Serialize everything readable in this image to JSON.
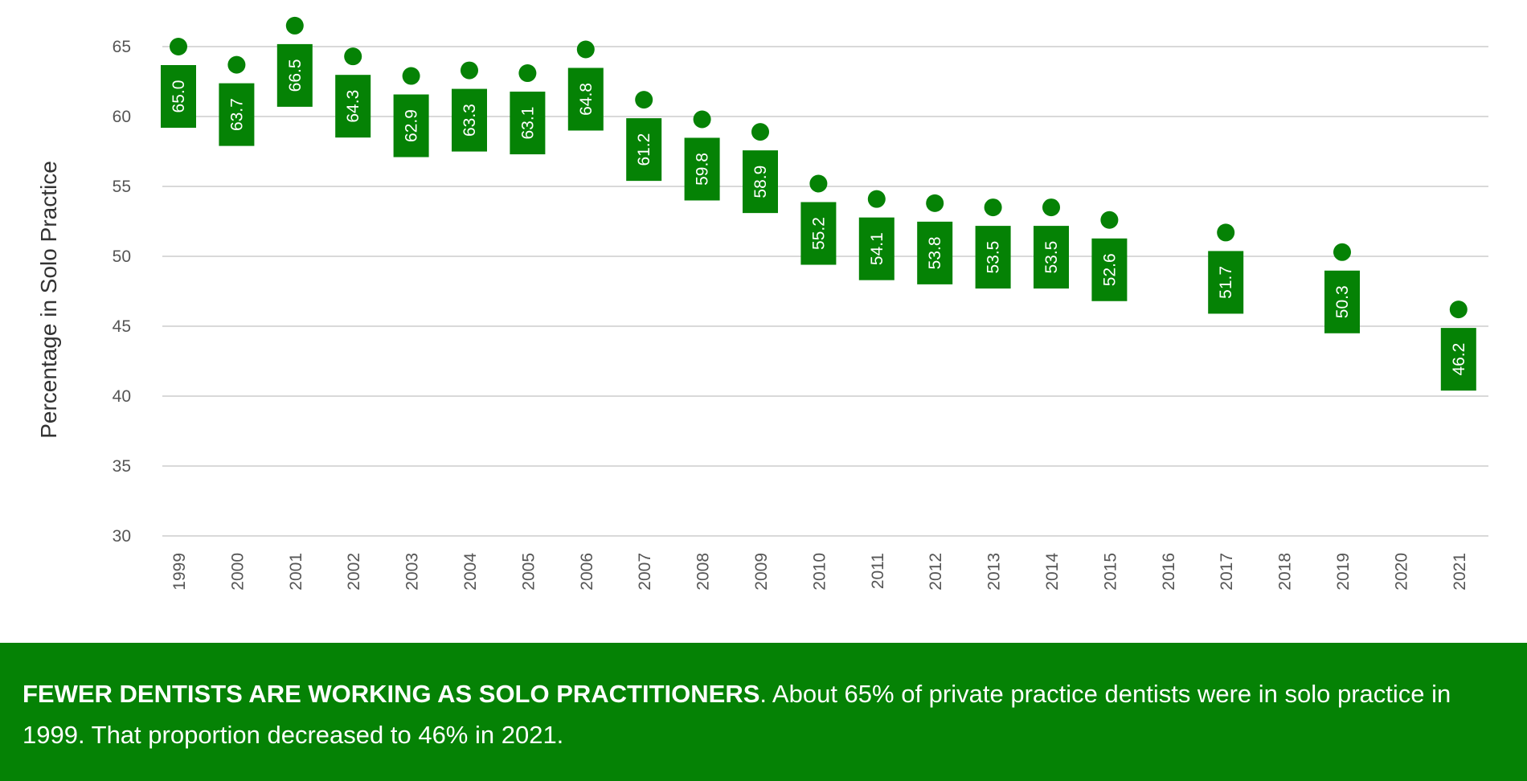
{
  "chart_data": {
    "type": "scatter",
    "x": [
      "1999",
      "2000",
      "2001",
      "2002",
      "2003",
      "2004",
      "2005",
      "2006",
      "2007",
      "2008",
      "2009",
      "2010",
      "2011",
      "2012",
      "2013",
      "2014",
      "2015",
      "2016",
      "2017",
      "2018",
      "2019",
      "2020",
      "2021"
    ],
    "series": [
      {
        "values": [
          65.0,
          63.7,
          66.5,
          64.3,
          62.9,
          63.3,
          63.1,
          64.8,
          61.2,
          59.8,
          58.9,
          55.2,
          54.1,
          53.8,
          53.5,
          53.5,
          52.6,
          null,
          51.7,
          null,
          50.3,
          null,
          46.2
        ],
        "labels": [
          "65.0",
          "63.7",
          "66.5",
          "64.3",
          "62.9",
          "63.3",
          "63.1",
          "64.8",
          "61.2",
          "59.8",
          "58.9",
          "55.2",
          "54.1",
          "53.8",
          "53.5",
          "53.5",
          "52.6",
          "",
          "51.7",
          "",
          "50.3",
          "",
          "46.2"
        ]
      }
    ],
    "ylabel": "Percentage in Solo Practice",
    "ylim": [
      30,
      65
    ],
    "yticks": [
      "30",
      "35",
      "40",
      "45",
      "50",
      "55",
      "60",
      "65"
    ],
    "grid": true,
    "data_labels": "rotated boxes below points",
    "colors": {
      "marker": "#058205",
      "label_box": "#058205",
      "label_text": "#ffffff",
      "grid": "#d9d9d9"
    }
  },
  "footer": {
    "headline": "FEWER DENTISTS ARE WORKING AS SOLO PRACTITIONERS",
    "body": ". About 65% of private practice dentists were in solo practice in 1999. That proportion decreased to 46% in 2021.",
    "background": "#058205"
  }
}
